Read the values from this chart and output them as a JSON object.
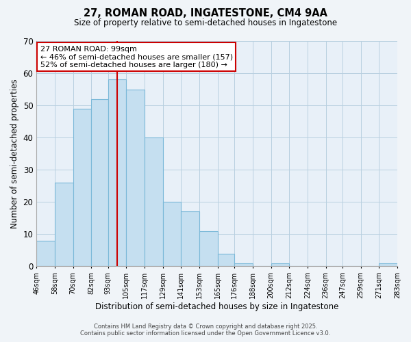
{
  "title": "27, ROMAN ROAD, INGATESTONE, CM4 9AA",
  "subtitle": "Size of property relative to semi-detached houses in Ingatestone",
  "xlabel": "Distribution of semi-detached houses by size in Ingatestone",
  "ylabel": "Number of semi-detached properties",
  "bin_edges": [
    46,
    58,
    70,
    82,
    93,
    105,
    117,
    129,
    141,
    153,
    165,
    176,
    188,
    200,
    212,
    224,
    236,
    247,
    259,
    271,
    283
  ],
  "bar_heights": [
    8,
    26,
    49,
    52,
    58,
    55,
    40,
    20,
    17,
    11,
    4,
    1,
    0,
    1,
    0,
    0,
    0,
    0,
    0,
    1
  ],
  "tick_labels": [
    "46sqm",
    "58sqm",
    "70sqm",
    "82sqm",
    "93sqm",
    "105sqm",
    "117sqm",
    "129sqm",
    "141sqm",
    "153sqm",
    "165sqm",
    "176sqm",
    "188sqm",
    "200sqm",
    "212sqm",
    "224sqm",
    "236sqm",
    "247sqm",
    "259sqm",
    "271sqm",
    "283sqm"
  ],
  "bar_color": "#c5dff0",
  "bar_edge_color": "#7ab8d8",
  "vline_x": 99,
  "vline_color": "#cc0000",
  "ylim": [
    0,
    70
  ],
  "yticks": [
    0,
    10,
    20,
    30,
    40,
    50,
    60,
    70
  ],
  "annotation_title": "27 ROMAN ROAD: 99sqm",
  "annotation_line1": "← 46% of semi-detached houses are smaller (157)",
  "annotation_line2": "52% of semi-detached houses are larger (180) →",
  "footer1": "Contains HM Land Registry data © Crown copyright and database right 2025.",
  "footer2": "Contains public sector information licensed under the Open Government Licence v3.0.",
  "background_color": "#f0f4f8",
  "plot_bg_color": "#e8f0f8",
  "grid_color": "#b8cfe0"
}
